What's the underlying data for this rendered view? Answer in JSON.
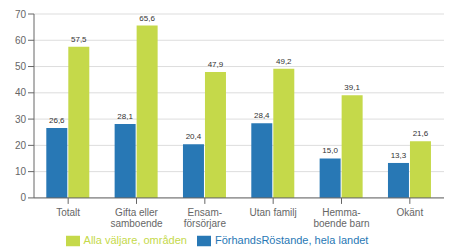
{
  "chart_data": {
    "type": "bar",
    "categories": [
      "Totalt",
      "Gifta eller\nsamboende",
      "Ensam-\nförsörjare",
      "Utan familj",
      "Hemma-\nboende barn",
      "Okänt"
    ],
    "series": [
      {
        "name": "FörhandsRöstande, hela landet",
        "color": "#2878B5",
        "values": [
          26.6,
          28.1,
          20.4,
          28.4,
          15.0,
          13.3
        ],
        "value_labels": [
          "26,6",
          "28,1",
          "20,4",
          "28,4",
          "15,0",
          "13,3"
        ]
      },
      {
        "name": "Alla väljare, områden",
        "color": "#C5D94A",
        "values": [
          57.5,
          65.6,
          47.9,
          49.2,
          39.1,
          21.6
        ],
        "value_labels": [
          "57,5",
          "65,6",
          "47,9",
          "49,2",
          "39,1",
          "21,6"
        ]
      }
    ],
    "ylim": [
      0,
      70
    ],
    "yticks": [
      0,
      10,
      20,
      30,
      40,
      50,
      60,
      70
    ],
    "grid": true,
    "legend": "bottom",
    "data_labels": true
  }
}
